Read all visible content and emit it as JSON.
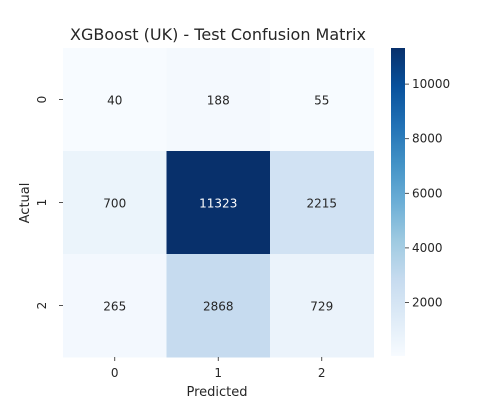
{
  "chart_data": {
    "type": "heatmap",
    "title": "XGBoost (UK) - Test Confusion Matrix",
    "xlabel": "Predicted",
    "ylabel": "Actual",
    "x_categories": [
      "0",
      "1",
      "2"
    ],
    "y_categories": [
      "0",
      "1",
      "2"
    ],
    "values": [
      [
        40,
        188,
        55
      ],
      [
        700,
        11323,
        2215
      ],
      [
        265,
        2868,
        729
      ]
    ],
    "colormap": "Blues",
    "color_range": [
      40,
      11323
    ],
    "colorbar_ticks": [
      2000,
      4000,
      6000,
      8000,
      10000
    ],
    "colorbar_tick_labels": [
      "2000",
      "4000",
      "6000",
      "8000",
      "10000"
    ],
    "grid": false,
    "colors": {
      "low": "#f7fbff",
      "high": "#08306b",
      "text_dark": "#262626",
      "text_light": "#ffffff"
    }
  }
}
